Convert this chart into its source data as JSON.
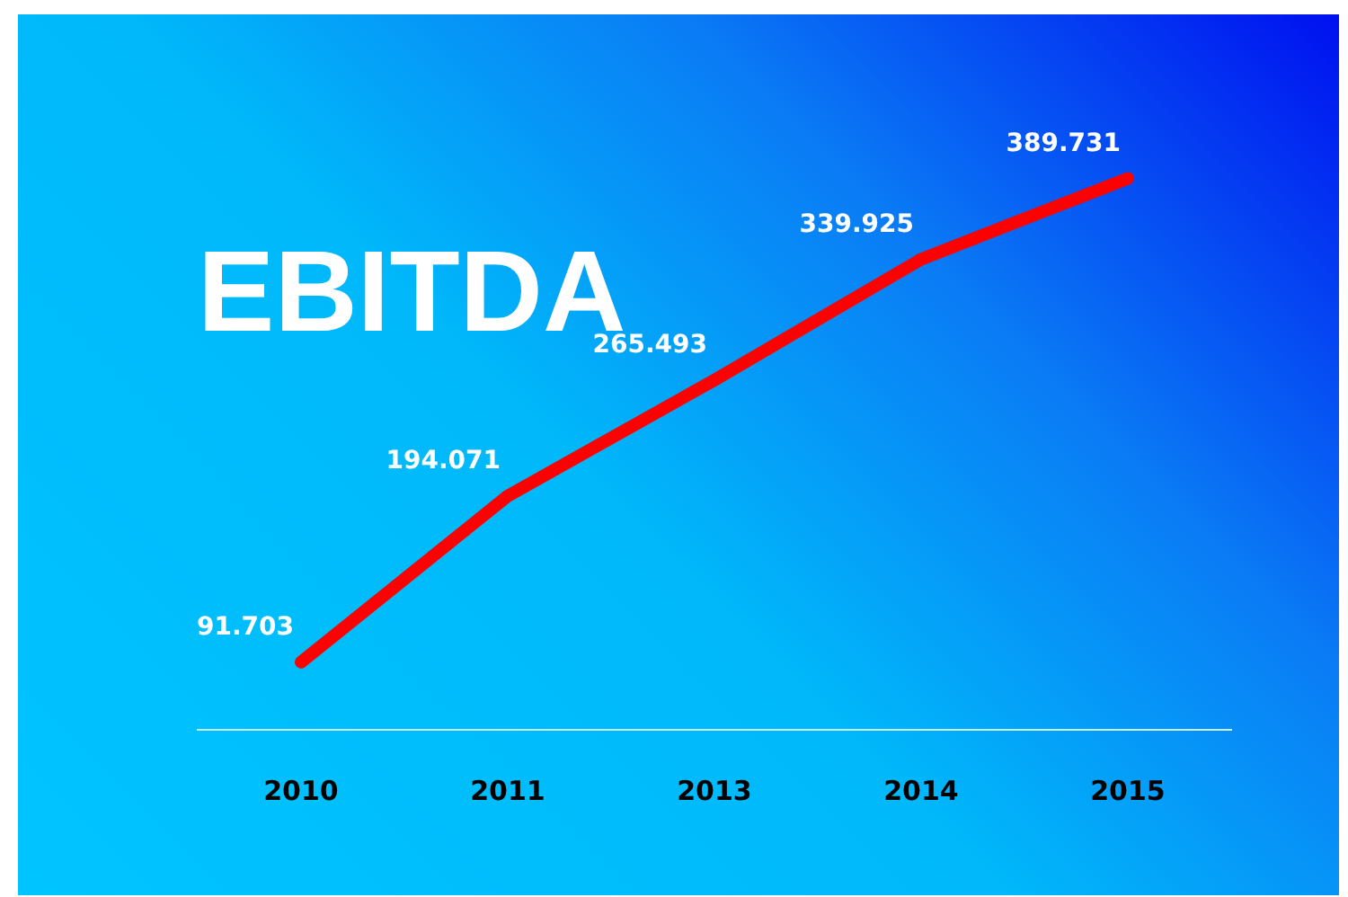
{
  "chart_data": {
    "type": "line",
    "title": "EBITDA",
    "categories": [
      "2010",
      "2011",
      "2013",
      "2014",
      "2015"
    ],
    "series": [
      {
        "color": "#ff0000",
        "values": [
          91.703,
          194.071,
          265.493,
          339.925,
          389.731
        ]
      }
    ],
    "data_labels": true,
    "grid": false,
    "legend": false,
    "marker": "none",
    "line_style": "solid"
  }
}
